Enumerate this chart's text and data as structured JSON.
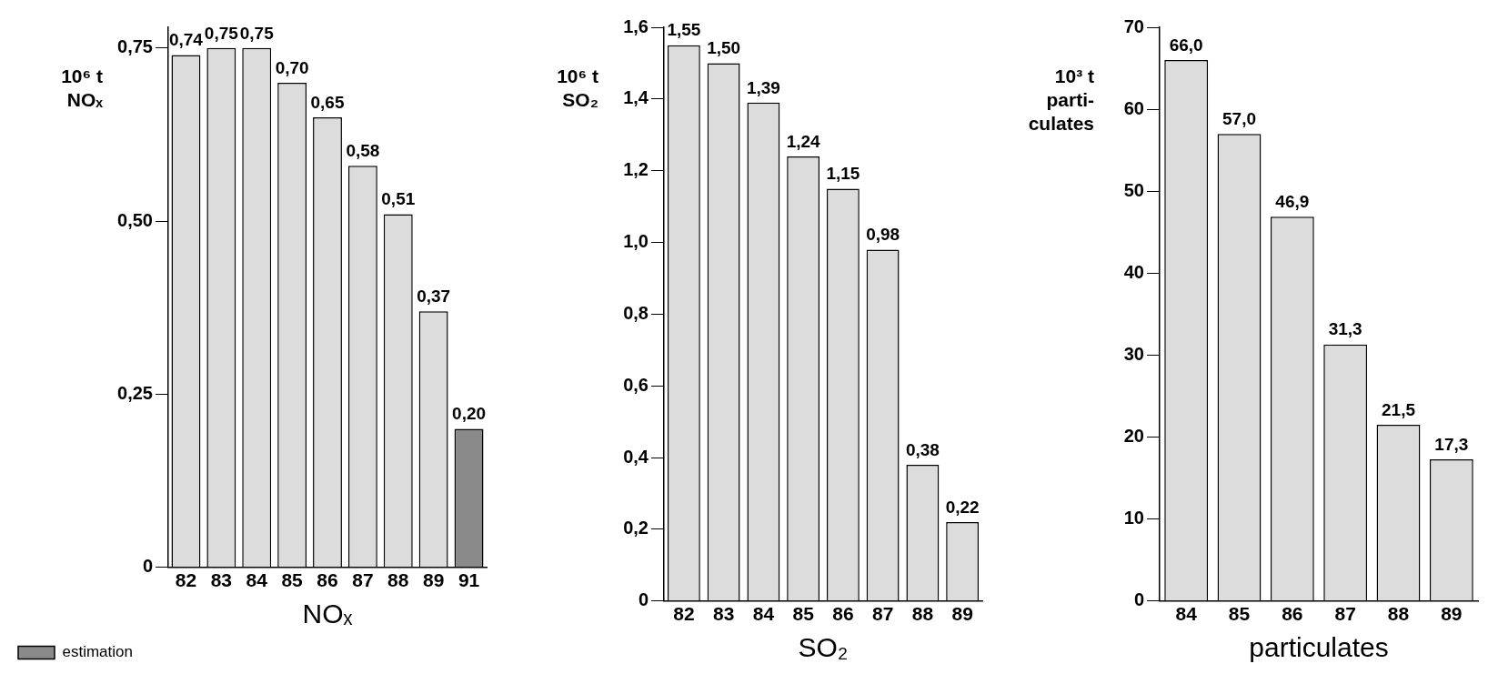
{
  "chart_data": [
    {
      "type": "bar",
      "xlabel": "NOₓ",
      "ylabel": "10⁶ t\nNOₓ",
      "categories": [
        "82",
        "83",
        "84",
        "85",
        "86",
        "87",
        "88",
        "89",
        "91"
      ],
      "stacked": true,
      "legend": "bottom left",
      "grid": false,
      "series": [
        {
          "color": "#dcdcdc",
          "values": [
            0.74,
            0.75,
            0.75,
            0.7,
            0.65,
            0.58,
            0.51,
            0.37,
            null
          ],
          "value_labels": [
            "0,74",
            "0,75",
            "0,75",
            "0,70",
            "0,65",
            "0,58",
            "0,51",
            "0,37",
            null
          ]
        },
        {
          "name": "estimation",
          "color": "#8a8a8a",
          "values": [
            null,
            null,
            null,
            null,
            null,
            null,
            null,
            null,
            0.2
          ],
          "value_labels": [
            null,
            null,
            null,
            null,
            null,
            null,
            null,
            null,
            "0,20"
          ]
        }
      ],
      "ylim": [
        0,
        0.78
      ],
      "yticks": [
        0,
        {
          "value": 0.25,
          "label": "0,25"
        },
        {
          "value": 0.5,
          "label": "0,50"
        },
        {
          "value": 0.75,
          "label": "0,75"
        }
      ]
    },
    {
      "type": "bar",
      "xlabel": "SO₂",
      "ylabel": "10⁶ t\nSO₂",
      "categories": [
        "82",
        "83",
        "84",
        "85",
        "86",
        "87",
        "88",
        "89"
      ],
      "grid": false,
      "series": [
        {
          "color": "#dcdcdc",
          "values": [
            1.55,
            1.5,
            1.39,
            1.24,
            1.15,
            0.98,
            0.38,
            0.22
          ],
          "value_labels": [
            "1,55",
            "1,50",
            "1,39",
            "1,24",
            "1,15",
            "0,98",
            "0,38",
            "0,22"
          ]
        }
      ],
      "ylim": [
        0,
        1.6
      ],
      "yticks": [
        0,
        {
          "value": 0.2,
          "label": "0,2"
        },
        {
          "value": 0.4,
          "label": "0,4"
        },
        {
          "value": 0.6,
          "label": "0,6"
        },
        {
          "value": 0.8,
          "label": "0,8"
        },
        {
          "value": 1.0,
          "label": "1,0"
        },
        {
          "value": 1.2,
          "label": "1,2"
        },
        {
          "value": 1.4,
          "label": "1,4"
        },
        {
          "value": 1.6,
          "label": "1,6"
        }
      ]
    },
    {
      "type": "bar",
      "xlabel": "particulates",
      "ylabel": "10³ t\nparti-\nculates",
      "categories": [
        "84",
        "85",
        "86",
        "87",
        "88",
        "89"
      ],
      "grid": false,
      "series": [
        {
          "color": "#dcdcdc",
          "values": [
            66.0,
            57.0,
            46.9,
            31.3,
            21.5,
            17.3
          ],
          "value_labels": [
            "66,0",
            "57,0",
            "46,9",
            "31,3",
            "21,5",
            "17,3"
          ]
        }
      ],
      "ylim": [
        0,
        70
      ],
      "yticks": [
        0,
        10,
        20,
        30,
        40,
        50,
        60,
        70
      ]
    }
  ]
}
